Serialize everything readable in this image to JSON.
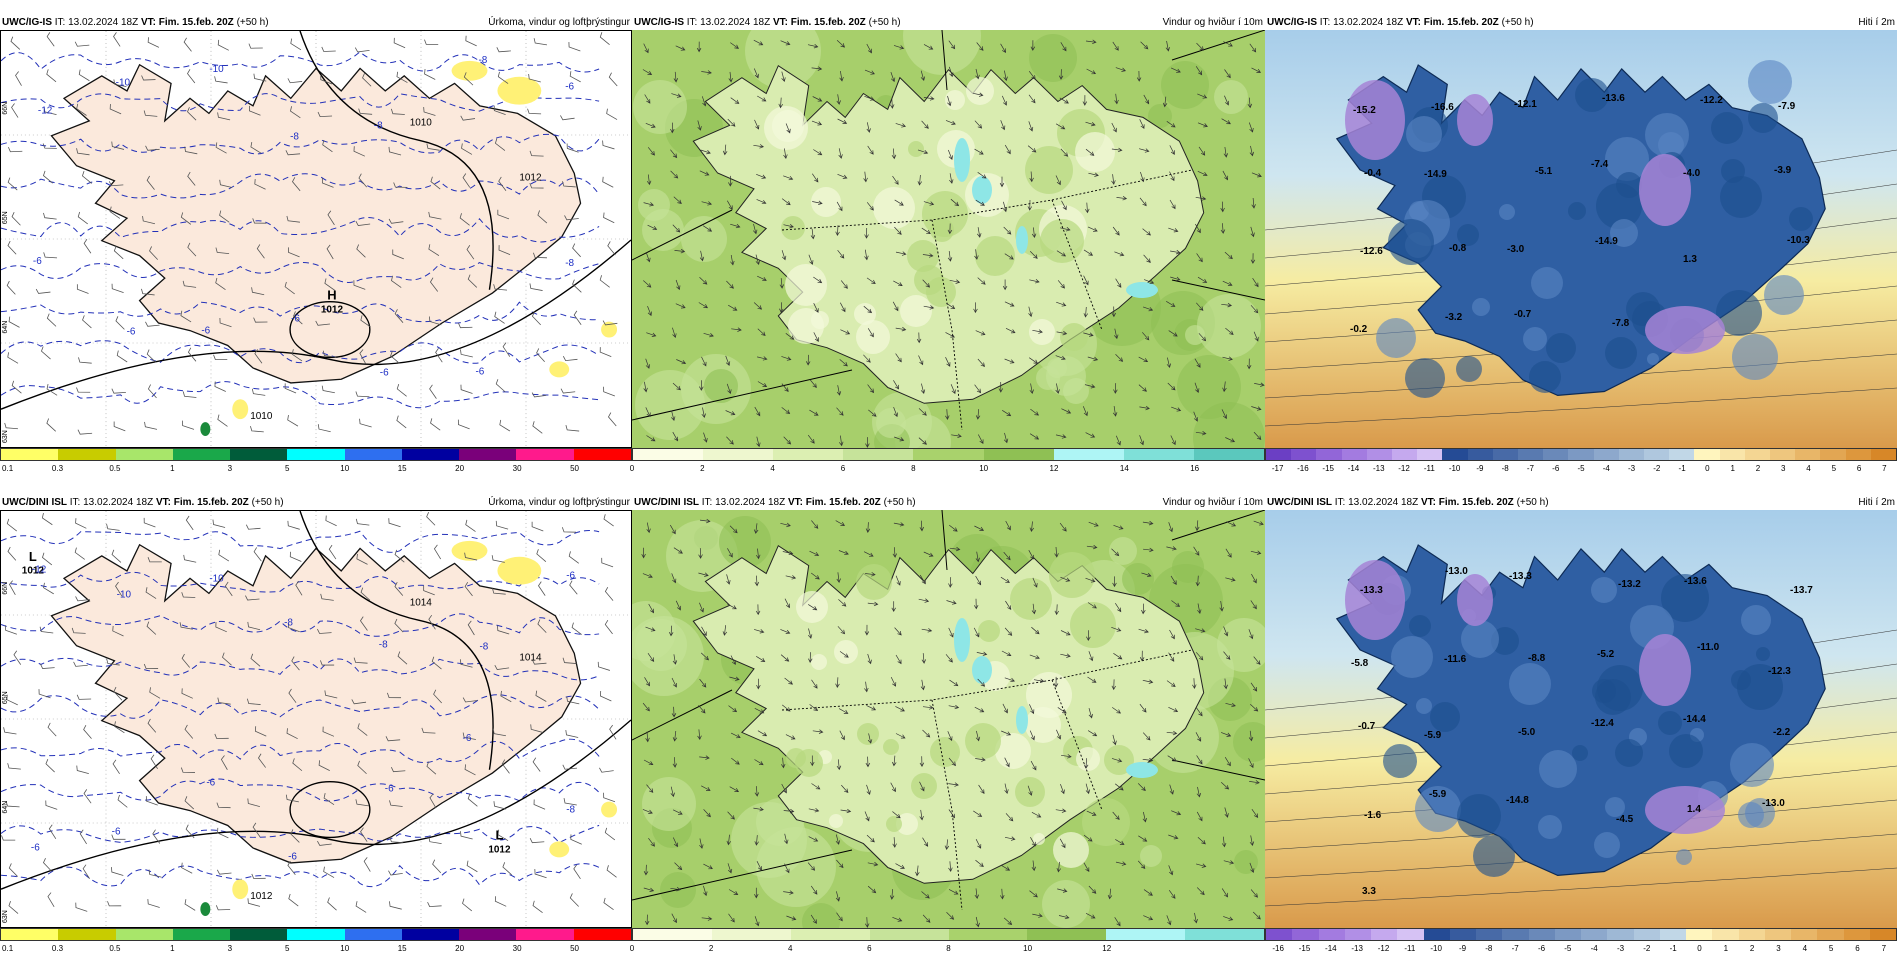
{
  "colors": {
    "land_precip": "#fbe9dc",
    "sea_precip": "#ffffff",
    "isobar_dash": "#2331b8",
    "coast": "#111111",
    "wind_land": "#d9ecb0",
    "wind_sea": "#a7cf6b",
    "temp_land": "#2f5fa3",
    "temp_sea": "#e7b860"
  },
  "rows": [
    {
      "panels": [
        {
          "type": "precip",
          "model": "UWC/IG-IS",
          "it_label": "IT:",
          "it": "13.02.2024 18Z",
          "vt_label": "VT:",
          "vt": "Fim. 15.feb. 20Z",
          "lead": "(+50 h)",
          "title": "Úrkoma, vindur og loftþrýstingur",
          "lat_labels": [
            "66N",
            "65N",
            "64N",
            "63N"
          ],
          "pressure_systems": [
            {
              "type": "H",
              "value": "1012"
            }
          ],
          "isobar_labels": [
            "1012",
            "1010",
            "1010"
          ],
          "contour_labels": [
            "-12",
            "-10",
            "-10",
            "-8",
            "-8",
            "-8",
            "-6",
            "-6",
            "-6",
            "-6",
            "-6",
            "-6",
            "-6",
            "-8"
          ]
        },
        {
          "type": "wind",
          "model": "UWC/IG-IS",
          "it_label": "IT:",
          "it": "13.02.2024 18Z",
          "vt_label": "VT:",
          "vt": "Fim. 15.feb. 20Z",
          "lead": "(+50 h)",
          "title": "Vindur og hviður í 10m"
        },
        {
          "type": "temp",
          "model": "UWC/IG-IS",
          "it_label": "IT:",
          "it": "13.02.2024 18Z",
          "vt_label": "VT:",
          "vt": "Fim. 15.feb. 20Z",
          "lead": "(+50 h)",
          "title": "Hiti í 2m",
          "labels": [
            "-15.2",
            "-16.6",
            "-12.1",
            "-13.6",
            "-12.2",
            "-7.9",
            "-0.4",
            "-14.9",
            "-5.1",
            "-7.4",
            "-4.0",
            "-3.9",
            "-12.6",
            "-0.8",
            "-3.0",
            "-14.9",
            "1.3",
            "-10.3",
            "-0.2",
            "-3.2",
            "-0.7",
            "-7.8"
          ]
        }
      ],
      "colorbars": {
        "precip": {
          "ticks": [
            "0.1",
            "0.3",
            "0.5",
            "1",
            "3",
            "5",
            "10",
            "15",
            "20",
            "30",
            "50"
          ]
        },
        "wind": {
          "ticks": [
            "0",
            "2",
            "4",
            "6",
            "8",
            "10",
            "12",
            "14",
            "16"
          ]
        },
        "temp": {
          "ticks": [
            "-17",
            "-16",
            "-15",
            "-14",
            "-13",
            "-12",
            "-11",
            "-10",
            "-9",
            "-8",
            "-7",
            "-6",
            "-5",
            "-4",
            "-3",
            "-2",
            "-1",
            "0",
            "1",
            "2",
            "3",
            "4",
            "5",
            "6",
            "7"
          ]
        }
      }
    },
    {
      "panels": [
        {
          "type": "precip",
          "model": "UWC/DINI ISL",
          "it_label": "IT:",
          "it": "13.02.2024 18Z",
          "vt_label": "VT:",
          "vt": "Fim. 15.feb. 20Z",
          "lead": "(+50 h)",
          "title": "Úrkoma, vindur og loftþrýstingur",
          "lat_labels": [
            "66N",
            "65N",
            "64N",
            "63N"
          ],
          "pressure_systems": [
            {
              "type": "L",
              "value": "1012"
            },
            {
              "type": "L",
              "value": "1012"
            }
          ],
          "isobar_labels": [
            "1014",
            "1014",
            "1012"
          ],
          "contour_labels": [
            "-12",
            "-10",
            "-10",
            "-8",
            "-8",
            "-8",
            "-6",
            "-6",
            "-6",
            "-6",
            "-6",
            "-6",
            "-6",
            "-8"
          ]
        },
        {
          "type": "wind",
          "model": "UWC/DINI ISL",
          "it_label": "IT:",
          "it": "13.02.2024 18Z",
          "vt_label": "VT:",
          "vt": "Fim. 15.feb. 20Z",
          "lead": "(+50 h)",
          "title": "Vindur og hviður í 10m"
        },
        {
          "type": "temp",
          "model": "UWC/DINI ISL",
          "it_label": "IT:",
          "it": "13.02.2024 18Z",
          "vt_label": "VT:",
          "vt": "Fim. 15.feb. 20Z",
          "lead": "(+50 h)",
          "title": "Hiti í 2m",
          "labels": [
            "-13.3",
            "-13.0",
            "-13.3",
            "-13.2",
            "-13.6",
            "-13.7",
            "-5.8",
            "-11.6",
            "-8.8",
            "-5.2",
            "-11.0",
            "-12.3",
            "-0.7",
            "-5.9",
            "-5.0",
            "-12.4",
            "-14.4",
            "-2.2",
            "-1.6",
            "-5.9",
            "-14.8",
            "-4.5",
            "1.4",
            "-13.0",
            "3.3"
          ]
        }
      ],
      "colorbars": {
        "precip": {
          "ticks": [
            "0.1",
            "0.3",
            "0.5",
            "1",
            "3",
            "5",
            "10",
            "15",
            "20",
            "30",
            "50"
          ]
        },
        "wind": {
          "ticks": [
            "0",
            "2",
            "4",
            "6",
            "8",
            "10",
            "12"
          ]
        },
        "temp": {
          "ticks": [
            "-16",
            "-15",
            "-14",
            "-13",
            "-12",
            "-11",
            "-10",
            "-9",
            "-8",
            "-7",
            "-6",
            "-5",
            "-4",
            "-3",
            "-2",
            "-1",
            "0",
            "1",
            "2",
            "3",
            "4",
            "5",
            "6",
            "7"
          ]
        }
      }
    }
  ]
}
